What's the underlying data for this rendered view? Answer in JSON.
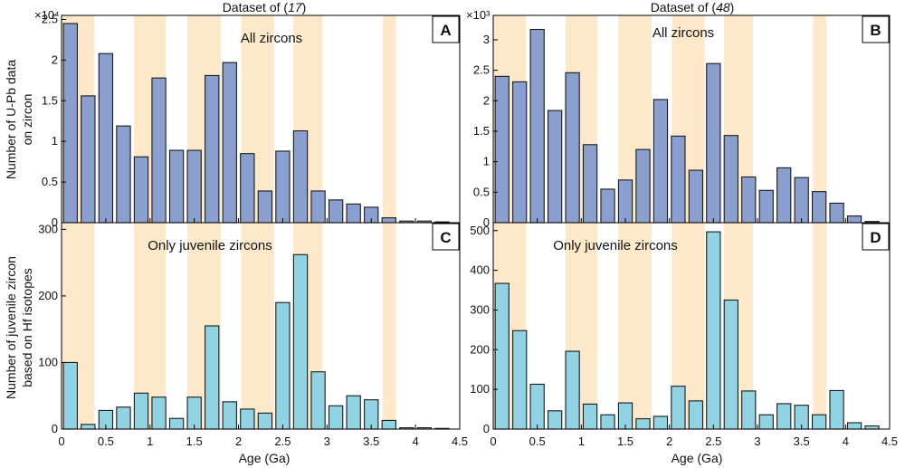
{
  "figure": {
    "xlabel": "Age (Ga)",
    "ylabel_top": [
      "Number of U-Pb data",
      "on zircon"
    ],
    "ylabel_bottom": [
      "Number of juvenile zircon",
      "based on Hf isotopes"
    ]
  },
  "colors": {
    "blue_bar": "#8b9fcf",
    "cyan_bar": "#92d3e3",
    "band": "#fde9c9",
    "bar_edge": "#1a1a1a"
  },
  "chart_data": [
    {
      "id": "A",
      "type": "bar",
      "title": "Dataset of (17)",
      "title_prefix": "Dataset of (",
      "title_ref": "17",
      "title_suffix": ")",
      "annotation": "All zircons",
      "panel_letter": "A",
      "xlabel": "",
      "ylabel": "Number of U-Pb data on zircon",
      "exponent": "×10⁴",
      "bin_width": 0.2,
      "x": [
        0.1,
        0.3,
        0.5,
        0.7,
        0.9,
        1.1,
        1.3,
        1.5,
        1.7,
        1.9,
        2.1,
        2.3,
        2.5,
        2.7,
        2.9,
        3.1,
        3.3,
        3.5,
        3.7,
        3.9,
        4.1,
        4.3
      ],
      "values": [
        2.45,
        1.56,
        2.08,
        1.19,
        0.81,
        1.78,
        0.89,
        0.89,
        1.81,
        1.97,
        0.85,
        0.39,
        0.88,
        1.13,
        0.39,
        0.28,
        0.23,
        0.19,
        0.06,
        0.02,
        0.02,
        0.01
      ],
      "xlim": [
        0,
        4.5
      ],
      "ylim": [
        0,
        2.55
      ],
      "xticks": [
        0,
        0.5,
        1,
        1.5,
        2,
        2.5,
        3,
        3.5,
        4,
        4.5
      ],
      "yticks": [
        0,
        0.5,
        1,
        1.5,
        2,
        2.5
      ],
      "color_key": "blue_bar",
      "bands": [
        [
          0,
          0.37
        ],
        [
          0.82,
          1.18
        ],
        [
          1.42,
          1.8
        ],
        [
          2.03,
          2.4
        ],
        [
          2.62,
          2.95
        ],
        [
          3.63,
          3.78
        ]
      ]
    },
    {
      "id": "B",
      "type": "bar",
      "title": "Dataset of (48)",
      "title_prefix": "Dataset of (",
      "title_ref": "48",
      "title_suffix": ")",
      "annotation": "All zircons",
      "panel_letter": "B",
      "xlabel": "",
      "ylabel": "",
      "exponent": "×10³",
      "bin_width": 0.2,
      "x": [
        0.1,
        0.3,
        0.5,
        0.7,
        0.9,
        1.1,
        1.3,
        1.5,
        1.7,
        1.9,
        2.1,
        2.3,
        2.5,
        2.7,
        2.9,
        3.1,
        3.3,
        3.5,
        3.7,
        3.9,
        4.1,
        4.3
      ],
      "values": [
        2.4,
        2.31,
        3.17,
        1.84,
        2.46,
        1.28,
        0.55,
        0.7,
        1.2,
        2.02,
        1.42,
        0.86,
        2.61,
        1.43,
        0.75,
        0.53,
        0.9,
        0.74,
        0.51,
        0.32,
        0.11,
        0.02
      ],
      "xlim": [
        0,
        4.5
      ],
      "ylim": [
        0,
        3.4
      ],
      "xticks": [
        0,
        0.5,
        1,
        1.5,
        2,
        2.5,
        3,
        3.5,
        4,
        4.5
      ],
      "yticks": [
        0,
        0.5,
        1,
        1.5,
        2,
        2.5,
        3
      ],
      "color_key": "blue_bar",
      "bands": [
        [
          0,
          0.37
        ],
        [
          0.82,
          1.18
        ],
        [
          1.42,
          1.8
        ],
        [
          2.03,
          2.4
        ],
        [
          2.62,
          2.95
        ],
        [
          3.63,
          3.78
        ]
      ]
    },
    {
      "id": "C",
      "type": "bar",
      "title": "",
      "annotation": "Only juvenile zircons",
      "panel_letter": "C",
      "xlabel": "Age (Ga)",
      "ylabel": "Number of juvenile zircon based on Hf isotopes",
      "exponent": "",
      "bin_width": 0.2,
      "x": [
        0.1,
        0.3,
        0.5,
        0.7,
        0.9,
        1.1,
        1.3,
        1.5,
        1.7,
        1.9,
        2.1,
        2.3,
        2.5,
        2.7,
        2.9,
        3.1,
        3.3,
        3.5,
        3.7,
        3.9,
        4.1,
        4.3
      ],
      "values": [
        100,
        7,
        28,
        33,
        54,
        48,
        16,
        48,
        155,
        41,
        30,
        24,
        190,
        262,
        86,
        35,
        50,
        44,
        13,
        2,
        2,
        1
      ],
      "xlim": [
        0,
        4.5
      ],
      "ylim": [
        0,
        310
      ],
      "xticks": [
        0,
        0.5,
        1,
        1.5,
        2,
        2.5,
        3,
        3.5,
        4,
        4.5
      ],
      "yticks": [
        0,
        100,
        200,
        300
      ],
      "color_key": "cyan_bar",
      "bands": [
        [
          0,
          0.37
        ],
        [
          0.82,
          1.18
        ],
        [
          1.42,
          1.8
        ],
        [
          2.03,
          2.4
        ],
        [
          2.62,
          2.95
        ],
        [
          3.63,
          3.78
        ]
      ]
    },
    {
      "id": "D",
      "type": "bar",
      "title": "",
      "annotation": "Only juvenile zircons",
      "panel_letter": "D",
      "xlabel": "Age (Ga)",
      "ylabel": "",
      "exponent": "",
      "bin_width": 0.2,
      "x": [
        0.1,
        0.3,
        0.5,
        0.7,
        0.9,
        1.1,
        1.3,
        1.5,
        1.7,
        1.9,
        2.1,
        2.3,
        2.5,
        2.7,
        2.9,
        3.1,
        3.3,
        3.5,
        3.7,
        3.9,
        4.1,
        4.3
      ],
      "values": [
        367,
        248,
        113,
        46,
        196,
        63,
        36,
        66,
        26,
        32,
        108,
        71,
        497,
        325,
        96,
        36,
        64,
        60,
        36,
        97,
        16,
        8
      ],
      "xlim": [
        0,
        4.5
      ],
      "ylim": [
        0,
        520
      ],
      "xticks": [
        0,
        0.5,
        1,
        1.5,
        2,
        2.5,
        3,
        3.5,
        4,
        4.5
      ],
      "yticks": [
        0,
        100,
        200,
        300,
        400,
        500
      ],
      "color_key": "cyan_bar",
      "bands": [
        [
          0,
          0.37
        ],
        [
          0.82,
          1.18
        ],
        [
          1.42,
          1.8
        ],
        [
          2.03,
          2.4
        ],
        [
          2.62,
          2.95
        ],
        [
          3.63,
          3.78
        ]
      ]
    }
  ]
}
